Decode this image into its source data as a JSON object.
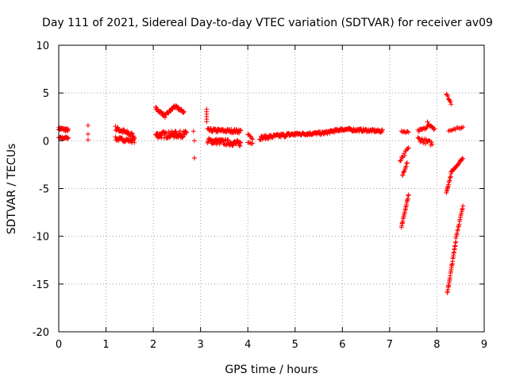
{
  "chart_data": {
    "type": "scatter",
    "title": "Day 111 of 2021, Sidereal Day-to-day VTEC variation (SDTVAR) for receiver av09",
    "xlabel": "GPS time / hours",
    "ylabel": "SDTVAR / TECUs",
    "xlim": [
      0,
      9
    ],
    "ylim": [
      -20,
      10
    ],
    "xticks": [
      0,
      1,
      2,
      3,
      4,
      5,
      6,
      7,
      8,
      9
    ],
    "yticks": [
      -20,
      -15,
      -10,
      -5,
      0,
      5,
      10
    ],
    "grid": true,
    "marker": "+",
    "color": "#ff0000",
    "series": [
      {
        "name": "SDTVAR",
        "segments": [
          {
            "x": [
              0.0,
              0.2
            ],
            "y": [
              1.3,
              1.1
            ],
            "spread": 0.3,
            "n": 25
          },
          {
            "x": [
              0.0,
              0.2
            ],
            "y": [
              0.3,
              0.3
            ],
            "spread": 0.2,
            "n": 20
          },
          {
            "x": [
              0.62,
              0.62
            ],
            "y": [
              1.6,
              1.6
            ],
            "spread": 0.0,
            "n": 1
          },
          {
            "x": [
              0.62,
              0.62
            ],
            "y": [
              0.7,
              0.7
            ],
            "spread": 0.0,
            "n": 1
          },
          {
            "x": [
              0.62,
              0.62
            ],
            "y": [
              0.1,
              0.1
            ],
            "spread": 0.0,
            "n": 1
          },
          {
            "x": [
              1.2,
              1.6
            ],
            "y": [
              1.3,
              0.5
            ],
            "spread": 0.5,
            "n": 40
          },
          {
            "x": [
              1.2,
              1.6
            ],
            "y": [
              0.2,
              0.0
            ],
            "spread": 0.4,
            "n": 35
          },
          {
            "x": [
              2.05,
              2.25
            ],
            "y": [
              3.4,
              2.6
            ],
            "spread": 0.3,
            "n": 20
          },
          {
            "x": [
              2.25,
              2.45
            ],
            "y": [
              2.6,
              3.6
            ],
            "spread": 0.3,
            "n": 20
          },
          {
            "x": [
              2.45,
              2.65
            ],
            "y": [
              3.6,
              3.0
            ],
            "spread": 0.3,
            "n": 20
          },
          {
            "x": [
              2.05,
              2.7
            ],
            "y": [
              0.6,
              0.7
            ],
            "spread": 0.7,
            "n": 80
          },
          {
            "x": [
              2.85,
              2.85
            ],
            "y": [
              1.0,
              1.0
            ],
            "spread": 0.0,
            "n": 1
          },
          {
            "x": [
              2.87,
              2.87
            ],
            "y": [
              0.0,
              0.0
            ],
            "spread": 0.0,
            "n": 1
          },
          {
            "x": [
              2.87,
              2.87
            ],
            "y": [
              -1.8,
              -1.8
            ],
            "spread": 0.1,
            "n": 2
          },
          {
            "x": [
              3.13,
              3.13
            ],
            "y": [
              3.3,
              2.0
            ],
            "spread": 0.0,
            "n": 6
          },
          {
            "x": [
              3.15,
              3.85
            ],
            "y": [
              1.1,
              1.0
            ],
            "spread": 0.4,
            "n": 60
          },
          {
            "x": [
              3.15,
              3.85
            ],
            "y": [
              0.0,
              -0.3
            ],
            "spread": 0.6,
            "n": 80
          },
          {
            "x": [
              4.0,
              4.1
            ],
            "y": [
              0.7,
              0.3
            ],
            "spread": 0.3,
            "n": 6
          },
          {
            "x": [
              4.0,
              4.1
            ],
            "y": [
              -0.1,
              -0.3
            ],
            "spread": 0.2,
            "n": 5
          },
          {
            "x": [
              4.25,
              5.0
            ],
            "y": [
              0.3,
              0.7
            ],
            "spread": 0.4,
            "n": 70
          },
          {
            "x": [
              5.0,
              5.6
            ],
            "y": [
              0.7,
              0.8
            ],
            "spread": 0.3,
            "n": 60
          },
          {
            "x": [
              5.6,
              6.0
            ],
            "y": [
              0.8,
              1.2
            ],
            "spread": 0.3,
            "n": 45
          },
          {
            "x": [
              6.0,
              6.85
            ],
            "y": [
              1.2,
              1.0
            ],
            "spread": 0.3,
            "n": 80
          },
          {
            "x": [
              7.25,
              7.4
            ],
            "y": [
              1.0,
              0.9
            ],
            "spread": 0.2,
            "n": 8
          },
          {
            "x": [
              7.22,
              7.4
            ],
            "y": [
              -2.0,
              -0.8
            ],
            "spread": 0.4,
            "n": 12
          },
          {
            "x": [
              7.27,
              7.37
            ],
            "y": [
              -3.7,
              -2.2
            ],
            "spread": 0.3,
            "n": 10
          },
          {
            "x": [
              7.25,
              7.4
            ],
            "y": [
              -9.0,
              -5.7
            ],
            "spread": 0.2,
            "n": 22
          },
          {
            "x": [
              7.6,
              7.8
            ],
            "y": [
              1.0,
              1.4
            ],
            "spread": 0.3,
            "n": 12
          },
          {
            "x": [
              7.6,
              7.9
            ],
            "y": [
              0.2,
              -0.3
            ],
            "spread": 0.5,
            "n": 20
          },
          {
            "x": [
              7.8,
              7.95
            ],
            "y": [
              1.9,
              1.3
            ],
            "spread": 0.4,
            "n": 10
          },
          {
            "x": [
              8.2,
              8.3
            ],
            "y": [
              4.9,
              3.9
            ],
            "spread": 0.2,
            "n": 8
          },
          {
            "x": [
              8.25,
              8.55
            ],
            "y": [
              1.1,
              1.4
            ],
            "spread": 0.2,
            "n": 12
          },
          {
            "x": [
              8.2,
              8.3
            ],
            "y": [
              -5.4,
              -3.5
            ],
            "spread": 0.2,
            "n": 14
          },
          {
            "x": [
              8.3,
              8.55
            ],
            "y": [
              -3.3,
              -1.8
            ],
            "spread": 0.2,
            "n": 18
          },
          {
            "x": [
              8.22,
              8.4
            ],
            "y": [
              -16.0,
              -10.5
            ],
            "spread": 0.2,
            "n": 30
          },
          {
            "x": [
              8.4,
              8.55
            ],
            "y": [
              -10.2,
              -6.9
            ],
            "spread": 0.2,
            "n": 18
          }
        ]
      }
    ]
  }
}
